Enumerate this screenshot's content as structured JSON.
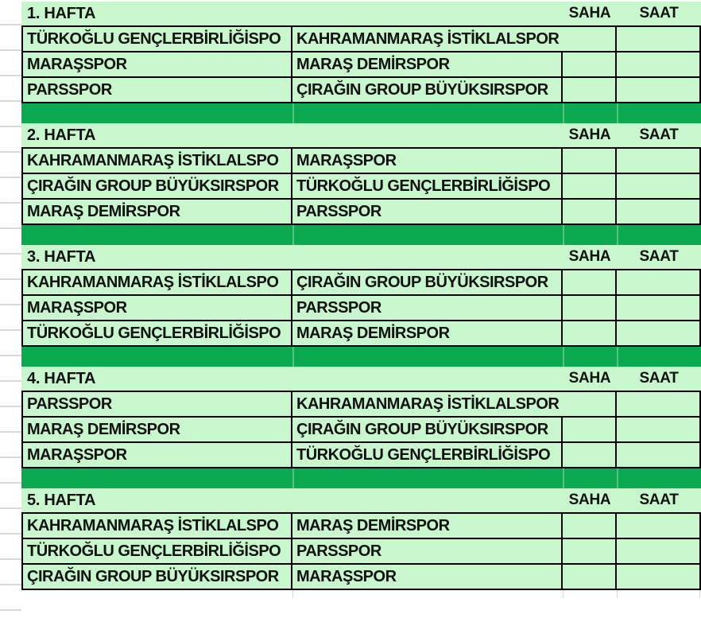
{
  "colors": {
    "cell_green": "#c9f7cd",
    "separator_green": "#0caa50",
    "border": "#000000",
    "gridline": "#d9d9d9",
    "text": "#111111",
    "background": "#ffffff"
  },
  "columns": {
    "saha_label": "SAHA",
    "saat_label": "SAAT"
  },
  "weeks": [
    {
      "label": "1. HAFTA",
      "matches": [
        {
          "home": "TÜRKOĞLU GENÇLERBİRLİĞİSPO",
          "away": "KAHRAMANMARAŞ İSTİKLALSPOR",
          "saha": "",
          "saat": "",
          "away_spans_saha": true
        },
        {
          "home": "MARAŞSPOR",
          "away": "MARAŞ DEMİRSPOR",
          "saha": "",
          "saat": "",
          "away_spans_saha": false
        },
        {
          "home": "PARSSPOR",
          "away": "ÇIRAĞIN GROUP BÜYÜKSIRSPOR",
          "saha": "",
          "saat": "",
          "away_spans_saha": false
        }
      ]
    },
    {
      "label": "2. HAFTA",
      "matches": [
        {
          "home": "KAHRAMANMARAŞ İSTİKLALSPO",
          "away": "MARAŞSPOR",
          "saha": "",
          "saat": "",
          "away_spans_saha": false
        },
        {
          "home": "ÇIRAĞIN GROUP BÜYÜKSIRSPOR",
          "away": "TÜRKOĞLU GENÇLERBİRLİĞİSPO",
          "saha": "",
          "saat": "",
          "away_spans_saha": false
        },
        {
          "home": "MARAŞ DEMİRSPOR",
          "away": "PARSSPOR",
          "saha": "",
          "saat": "",
          "away_spans_saha": false
        }
      ]
    },
    {
      "label": "3. HAFTA",
      "matches": [
        {
          "home": "KAHRAMANMARAŞ İSTİKLALSPO",
          "away": "ÇIRAĞIN GROUP BÜYÜKSIRSPOR",
          "saha": "",
          "saat": "",
          "away_spans_saha": false
        },
        {
          "home": "MARAŞSPOR",
          "away": "PARSSPOR",
          "saha": "",
          "saat": "",
          "away_spans_saha": false
        },
        {
          "home": "TÜRKOĞLU GENÇLERBİRLİĞİSPO",
          "away": "MARAŞ DEMİRSPOR",
          "saha": "",
          "saat": "",
          "away_spans_saha": false
        }
      ]
    },
    {
      "label": "4. HAFTA",
      "matches": [
        {
          "home": "PARSSPOR",
          "away": "KAHRAMANMARAŞ İSTİKLALSPOR",
          "saha": "",
          "saat": "",
          "away_spans_saha": true
        },
        {
          "home": "MARAŞ DEMİRSPOR",
          "away": "ÇIRAĞIN GROUP BÜYÜKSIRSPOR",
          "saha": "",
          "saat": "",
          "away_spans_saha": false
        },
        {
          "home": "MARAŞSPOR",
          "away": "TÜRKOĞLU GENÇLERBİRLİĞİSPO",
          "saha": "",
          "saat": "",
          "away_spans_saha": false
        }
      ]
    },
    {
      "label": "5. HAFTA",
      "matches": [
        {
          "home": "KAHRAMANMARAŞ İSTİKLALSPO",
          "away": "MARAŞ DEMİRSPOR",
          "saha": "",
          "saat": "",
          "away_spans_saha": false
        },
        {
          "home": "TÜRKOĞLU GENÇLERBİRLİĞİSPO",
          "away": "PARSSPOR",
          "saha": "",
          "saat": "",
          "away_spans_saha": false
        },
        {
          "home": "ÇIRAĞIN GROUP BÜYÜKSIRSPOR",
          "away": "MARAŞSPOR",
          "saha": "",
          "saat": "",
          "away_spans_saha": false
        }
      ]
    }
  ]
}
